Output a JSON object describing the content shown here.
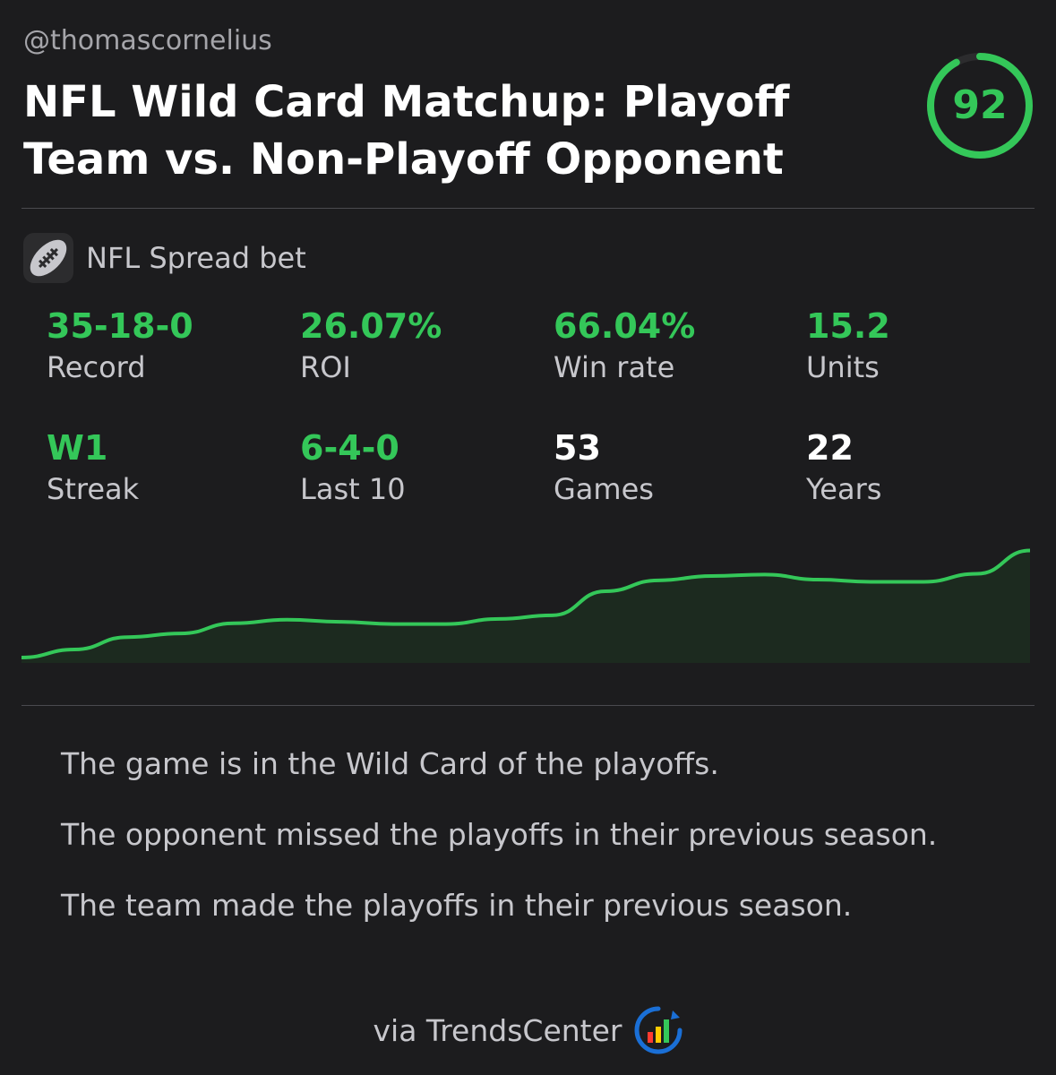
{
  "header": {
    "handle": "@thomascornelius",
    "title": "NFL Wild Card Matchup: Playoff Team vs. Non-Playoff Opponent",
    "score": "92",
    "score_fraction": 0.92
  },
  "bet": {
    "icon": "football-icon",
    "label": "NFL Spread bet"
  },
  "stats": [
    {
      "value": "35-18-0",
      "label": "Record",
      "color": "#34c759"
    },
    {
      "value": "26.07%",
      "label": "ROI",
      "color": "#34c759"
    },
    {
      "value": "66.04%",
      "label": "Win rate",
      "color": "#34c759"
    },
    {
      "value": "15.2",
      "label": "Units",
      "color": "#34c759"
    },
    {
      "value": "W1",
      "label": "Streak",
      "color": "#34c759"
    },
    {
      "value": "6-4-0",
      "label": "Last 10",
      "color": "#34c759"
    },
    {
      "value": "53",
      "label": "Games",
      "color": "#ffffff"
    },
    {
      "value": "22",
      "label": "Years",
      "color": "#ffffff"
    }
  ],
  "chart_data": {
    "type": "area",
    "x": [
      0,
      1,
      2,
      3,
      4,
      5,
      6,
      7,
      8,
      9,
      10,
      11,
      12,
      13,
      14,
      15,
      16,
      17,
      18,
      19
    ],
    "values": [
      0.5,
      1.6,
      3.3,
      3.8,
      5.2,
      5.7,
      5.4,
      5.1,
      5.1,
      5.8,
      6.3,
      9.6,
      11.1,
      11.7,
      11.9,
      11.2,
      10.9,
      10.9,
      12.0,
      15.2
    ],
    "line_color": "#34c759",
    "fill_color": "#1c2a1f",
    "ylim": [
      0,
      16
    ]
  },
  "conditions": [
    "The game is in the Wild Card of the playoffs.",
    "The opponent missed the playoffs in their previous season.",
    "The team made the playoffs in their previous season."
  ],
  "footer": {
    "text": "via TrendsCenter",
    "logo": "trendscenter-logo-icon"
  },
  "colors": {
    "accent": "#34c759",
    "background": "#1c1c1e"
  }
}
